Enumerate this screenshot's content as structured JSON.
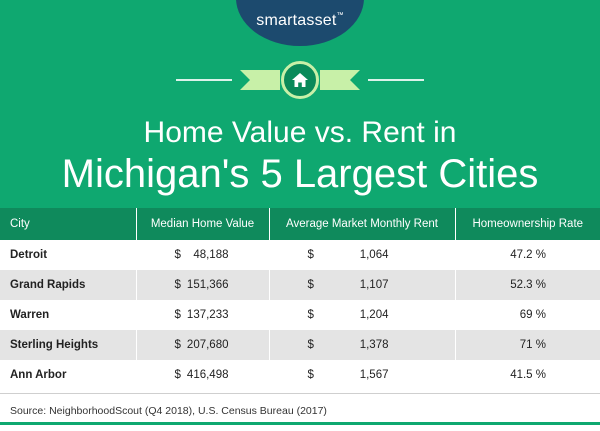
{
  "logo": {
    "text": "smartasset",
    "tm": "™"
  },
  "header": {
    "icon": "home-icon",
    "title_line1": "Home Value vs. Rent in",
    "title_line2": "Michigan's 5 Largest Cities"
  },
  "colors": {
    "header_green": "#0fa870",
    "table_header_green": "#0f8a5c",
    "logo_navy": "#1c4a6e",
    "ribbon_light_green": "#c8f0a8",
    "row_stripe": "#e4e4e4"
  },
  "table": {
    "columns": [
      "City",
      "Median Home Value",
      "Average Market Monthly Rent",
      "Homeownership Rate"
    ],
    "rows": [
      {
        "city": "Detroit",
        "home_cur": "$",
        "home_val": "48,188",
        "rent_cur": "$",
        "rent_val": "1,064",
        "rate": "47.2 %"
      },
      {
        "city": "Grand Rapids",
        "home_cur": "$",
        "home_val": "151,366",
        "rent_cur": "$",
        "rent_val": "1,107",
        "rate": "52.3 %"
      },
      {
        "city": "Warren",
        "home_cur": "$",
        "home_val": "137,233",
        "rent_cur": "$",
        "rent_val": "1,204",
        "rate": "69 %"
      },
      {
        "city": "Sterling Heights",
        "home_cur": "$",
        "home_val": "207,680",
        "rent_cur": "$",
        "rent_val": "1,378",
        "rate": "71 %"
      },
      {
        "city": "Ann Arbor",
        "home_cur": "$",
        "home_val": "416,498",
        "rent_cur": "$",
        "rent_val": "1,567",
        "rate": "41.5 %"
      }
    ]
  },
  "source": "Source: NeighborhoodScout (Q4 2018), U.S. Census Bureau (2017)"
}
